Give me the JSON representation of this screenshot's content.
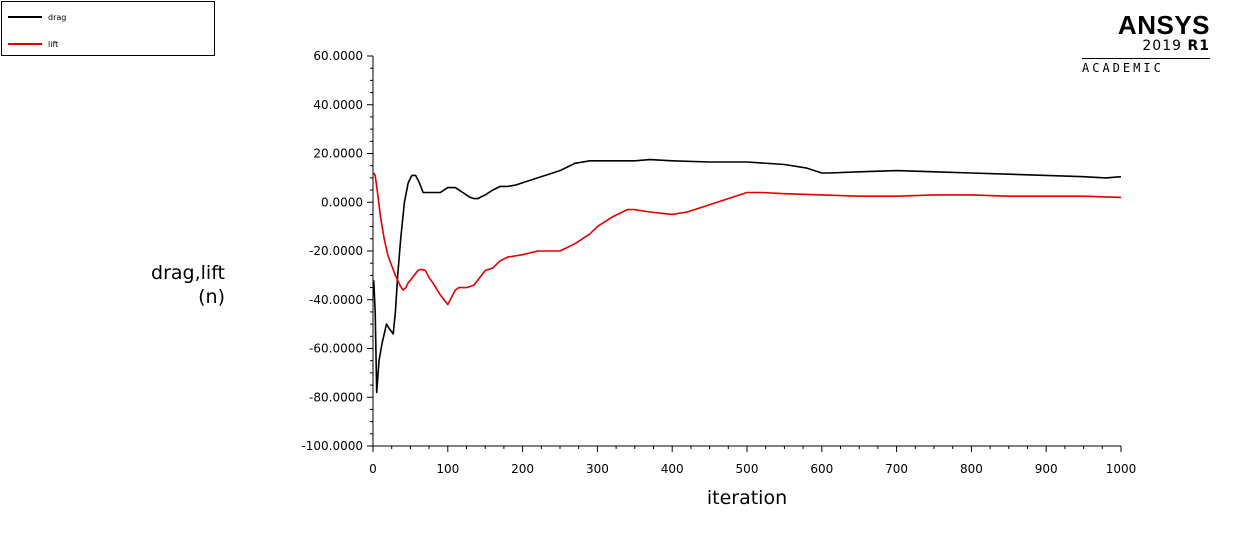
{
  "legend": {
    "items": [
      {
        "label": "drag",
        "color": "#000000"
      },
      {
        "label": "lift",
        "color": "#e00000"
      }
    ]
  },
  "logo": {
    "name": "ANSYS",
    "version_year": "2019",
    "version_release": "R1",
    "edition": "ACADEMIC"
  },
  "chart_data": {
    "type": "line",
    "title": "",
    "xlabel": "iteration",
    "ylabel_line1": "drag,lift",
    "ylabel_line2": "(n)",
    "xlim": [
      0,
      1000
    ],
    "ylim": [
      -100,
      60
    ],
    "x_ticks": [
      0,
      100,
      200,
      300,
      400,
      500,
      600,
      700,
      800,
      900,
      1000
    ],
    "x_tick_labels": [
      "0",
      "100",
      "200",
      "300",
      "400",
      "500",
      "600",
      "700",
      "800",
      "900",
      "1000"
    ],
    "y_ticks": [
      -100,
      -80,
      -60,
      -40,
      -20,
      0,
      20,
      40,
      60
    ],
    "y_tick_labels": [
      "-100.0000",
      "-80.0000",
      "-60.0000",
      "-40.0000",
      "-20.0000",
      "0.0000",
      "20.0000",
      "40.0000",
      "60.0000"
    ],
    "grid": false,
    "legend_position": "top-left",
    "series": [
      {
        "name": "drag",
        "color": "#000000",
        "x": [
          1,
          3,
          5,
          8,
          12,
          18,
          22,
          27,
          30,
          33,
          37,
          42,
          47,
          52,
          57,
          62,
          67,
          72,
          80,
          90,
          100,
          110,
          115,
          120,
          130,
          135,
          140,
          150,
          160,
          170,
          180,
          190,
          200,
          220,
          250,
          270,
          290,
          320,
          350,
          370,
          400,
          450,
          500,
          550,
          580,
          600,
          610,
          650,
          700,
          750,
          800,
          850,
          900,
          950,
          980,
          1000
        ],
        "y": [
          -32,
          -45,
          -78,
          -65,
          -58,
          -50,
          -52,
          -54,
          -45,
          -30,
          -15,
          0,
          8,
          11,
          11,
          8,
          4,
          4,
          4,
          4,
          6,
          6,
          5,
          4,
          2,
          1.5,
          1.5,
          3,
          5,
          6.5,
          6.5,
          7,
          8,
          10,
          13,
          16,
          17,
          17,
          17,
          17.5,
          17,
          16.5,
          16.5,
          15.5,
          14,
          12,
          12,
          12.5,
          13,
          12.5,
          12,
          11.5,
          11,
          10.5,
          10,
          10.5
        ]
      },
      {
        "name": "lift",
        "color": "#e00000",
        "x": [
          1,
          3,
          6,
          10,
          15,
          20,
          25,
          30,
          36,
          40,
          44,
          47,
          50,
          55,
          60,
          65,
          70,
          75,
          80,
          90,
          100,
          105,
          110,
          115,
          125,
          135,
          140,
          150,
          160,
          170,
          180,
          190,
          200,
          220,
          250,
          270,
          290,
          300,
          320,
          340,
          350,
          370,
          400,
          420,
          450,
          480,
          500,
          520,
          550,
          600,
          650,
          700,
          750,
          800,
          850,
          900,
          950,
          1000
        ],
        "y": [
          12,
          11,
          4,
          -6,
          -15,
          -22,
          -26,
          -30,
          -34,
          -36,
          -35,
          -33,
          -32,
          -30,
          -28,
          -27.5,
          -28,
          -31,
          -33,
          -38,
          -42,
          -39,
          -36,
          -35,
          -35,
          -34,
          -32,
          -28,
          -27,
          -24,
          -22.5,
          -22,
          -21.5,
          -20,
          -20,
          -17,
          -13,
          -10,
          -6,
          -3,
          -3,
          -4,
          -5,
          -4,
          -1,
          2,
          4,
          4,
          3.5,
          3,
          2.5,
          2.5,
          3,
          3,
          2.5,
          2.5,
          2.5,
          2
        ]
      }
    ]
  }
}
